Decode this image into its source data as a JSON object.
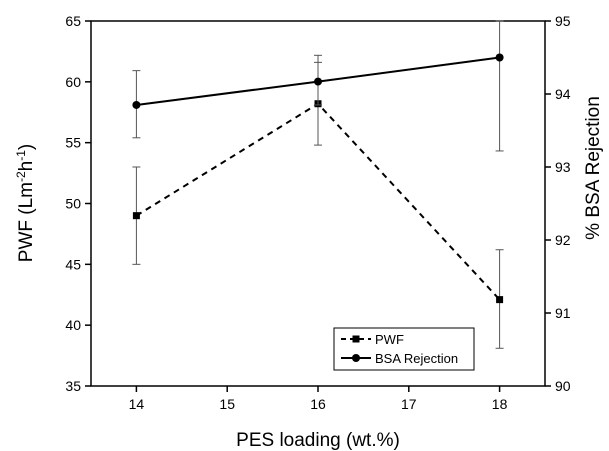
{
  "chart_data": {
    "type": "line",
    "title": "",
    "xlabel": "PES loading (wt.%)",
    "ylabel_left": {
      "main": "PWF (Lm",
      "sup1": "-2",
      "mid": "h",
      "sup2": "-1",
      "end": ")"
    },
    "ylabel_right": "% BSA Rejection",
    "x_ticks": [
      14,
      15,
      16,
      17,
      18
    ],
    "xlim": [
      13.5,
      18.5
    ],
    "ylim_left": [
      35,
      65
    ],
    "y_ticks_left": [
      35,
      40,
      45,
      50,
      55,
      60,
      65
    ],
    "ylim_right": [
      90,
      95
    ],
    "y_ticks_right": [
      90,
      91,
      92,
      93,
      94,
      95
    ],
    "grid": false,
    "legend_position": "bottom-right",
    "series": [
      {
        "name": "PWF",
        "axis": "left",
        "style": "dashed",
        "marker": "square",
        "color": "#000000",
        "points": [
          {
            "x": 14,
            "y": 49.0,
            "err_low": 45.0,
            "err_high": 53.0
          },
          {
            "x": 16,
            "y": 58.2,
            "err_low": 54.8,
            "err_high": 61.6
          },
          {
            "x": 18,
            "y": 42.1,
            "err_low": 38.1,
            "err_high": 46.2
          }
        ]
      },
      {
        "name": "BSA Rejection",
        "axis": "right",
        "style": "solid",
        "marker": "circle",
        "color": "#000000",
        "points": [
          {
            "x": 14,
            "y": 93.85,
            "err_low": 93.4,
            "err_high": 94.32
          },
          {
            "x": 16,
            "y": 94.17,
            "err_low": 93.85,
            "err_high": 94.53
          },
          {
            "x": 18,
            "y": 94.5,
            "err_low": 93.22,
            "err_high": 95.0
          }
        ]
      }
    ]
  }
}
